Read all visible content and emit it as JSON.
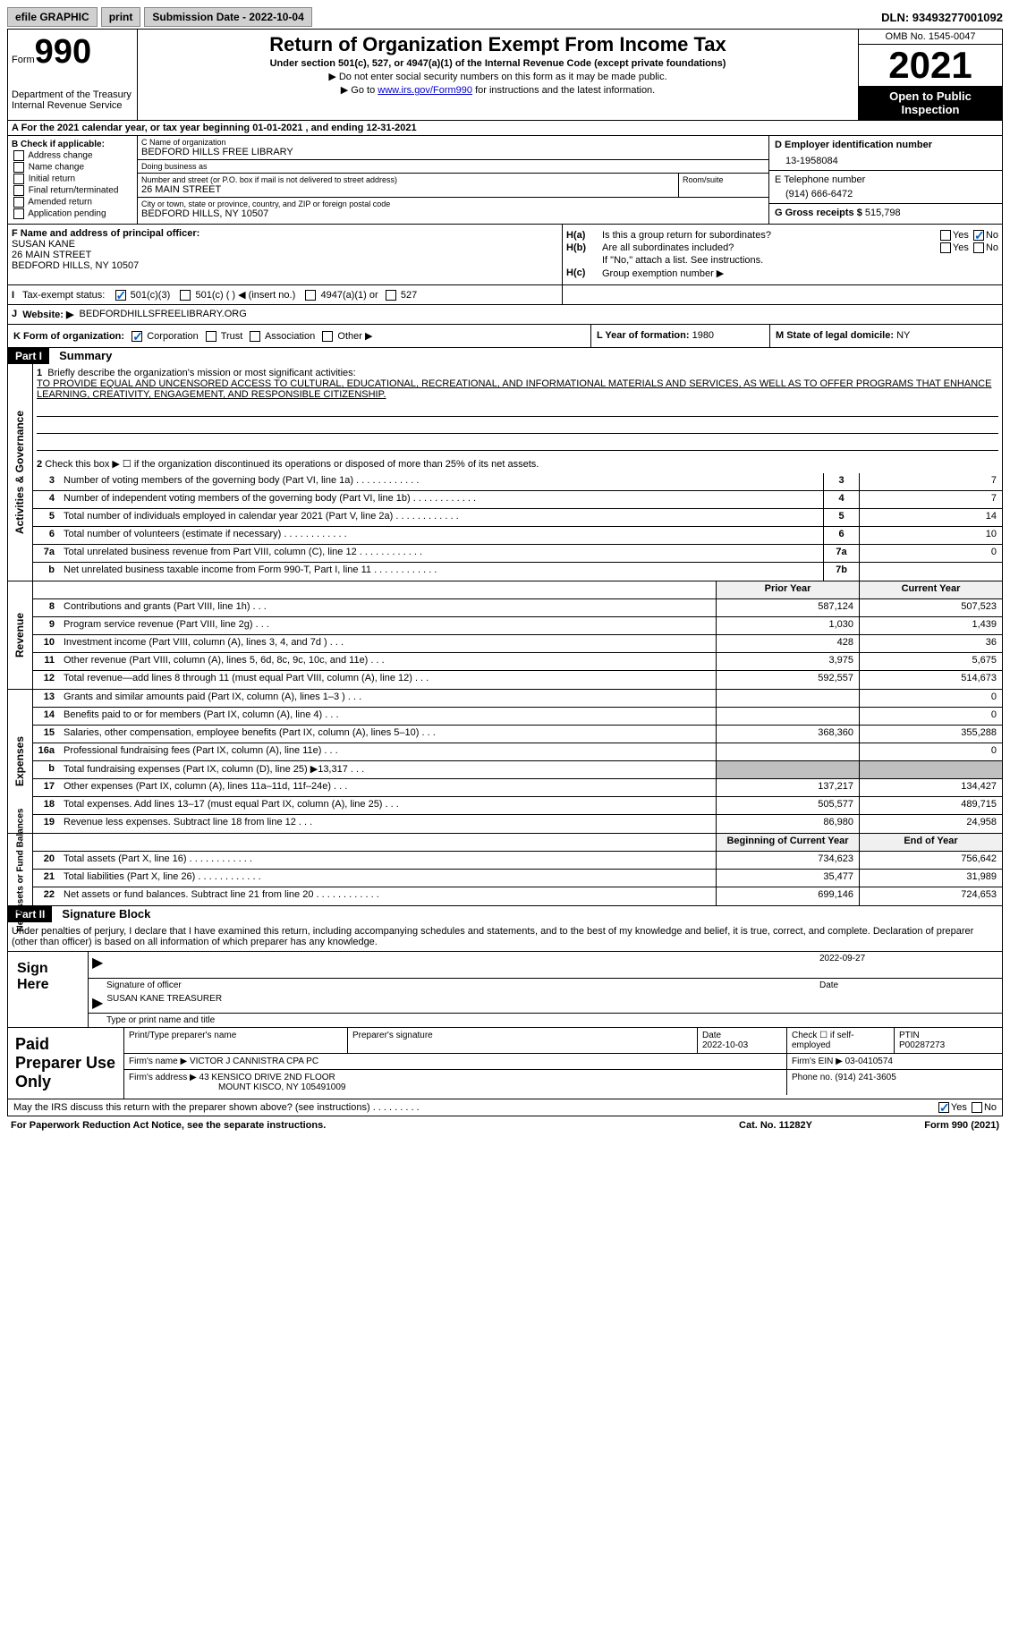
{
  "topbar": {
    "efile": "efile GRAPHIC",
    "print": "print",
    "submission": "Submission Date - 2022-10-04",
    "dln": "DLN: 93493277001092"
  },
  "header": {
    "form_prefix": "Form",
    "form_number": "990",
    "dept": "Department of the Treasury",
    "irs": "Internal Revenue Service",
    "title": "Return of Organization Exempt From Income Tax",
    "subtitle": "Under section 501(c), 527, or 4947(a)(1) of the Internal Revenue Code (except private foundations)",
    "note1": "▶ Do not enter social security numbers on this form as it may be made public.",
    "note2_pre": "▶ Go to ",
    "note2_link": "www.irs.gov/Form990",
    "note2_post": " for instructions and the latest information.",
    "omb": "OMB No. 1545-0047",
    "year": "2021",
    "inspect": "Open to Public Inspection"
  },
  "row_a": "A For the 2021 calendar year, or tax year beginning 01-01-2021    , and ending 12-31-2021",
  "section_b": {
    "label": "B Check if applicable:",
    "opts": [
      "Address change",
      "Name change",
      "Initial return",
      "Final return/terminated",
      "Amended return",
      "Application pending"
    ]
  },
  "section_c": {
    "name_label": "C Name of organization",
    "name": "BEDFORD HILLS FREE LIBRARY",
    "dba_label": "Doing business as",
    "dba": "",
    "street_label": "Number and street (or P.O. box if mail is not delivered to street address)",
    "street": "26 MAIN STREET",
    "room_label": "Room/suite",
    "room": "",
    "city_label": "City or town, state or province, country, and ZIP or foreign postal code",
    "city": "BEDFORD HILLS, NY  10507"
  },
  "section_d": {
    "ein_label": "D Employer identification number",
    "ein": "13-1958084",
    "phone_label": "E Telephone number",
    "phone": "(914) 666-6472",
    "gross_label": "G Gross receipts $",
    "gross": "515,798"
  },
  "section_f": {
    "label": "F Name and address of principal officer:",
    "name": "SUSAN KANE",
    "street": "26 MAIN STREET",
    "city": "BEDFORD HILLS, NY  10507"
  },
  "section_h": {
    "ha_label": "H(a)",
    "ha_text": "Is this a group return for subordinates?",
    "hb_label": "H(b)",
    "hb_text": "Are all subordinates included?",
    "hb_note": "If \"No,\" attach a list. See instructions.",
    "hc_label": "H(c)",
    "hc_text": "Group exemption number ▶"
  },
  "row_i": {
    "label": "I",
    "text": "Tax-exempt status:",
    "opt1": "501(c)(3)",
    "opt2": "501(c) (  ) ◀ (insert no.)",
    "opt3": "4947(a)(1) or",
    "opt4": "527"
  },
  "row_j": {
    "label": "J",
    "text": "Website: ▶",
    "val": "BEDFORDHILLSFREELIBRARY.ORG"
  },
  "row_k": {
    "label": "K Form of organization:",
    "opt1": "Corporation",
    "opt2": "Trust",
    "opt3": "Association",
    "opt4": "Other ▶",
    "l_label": "L Year of formation:",
    "l_val": "1980",
    "m_label": "M State of legal domicile:",
    "m_val": "NY"
  },
  "part1": {
    "hdr": "Part I",
    "title": "Summary",
    "line1_label": "1",
    "line1_text": "Briefly describe the organization's mission or most significant activities:",
    "line1_val": "TO PROVIDE EQUAL AND UNCENSORED ACCESS TO CULTURAL, EDUCATIONAL, RECREATIONAL, AND INFORMATIONAL MATERIALS AND SERVICES, AS WELL AS TO OFFER PROGRAMS THAT ENHANCE LEARNING, CREATIVITY, ENGAGEMENT, AND RESPONSIBLE CITIZENSHIP.",
    "line2_text": "Check this box ▶ ☐ if the organization discontinued its operations or disposed of more than 25% of its net assets."
  },
  "governance": {
    "vtab": "Activities & Governance",
    "rows": [
      {
        "n": "3",
        "t": "Number of voting members of the governing body (Part VI, line 1a)",
        "box": "3",
        "v": "7"
      },
      {
        "n": "4",
        "t": "Number of independent voting members of the governing body (Part VI, line 1b)",
        "box": "4",
        "v": "7"
      },
      {
        "n": "5",
        "t": "Total number of individuals employed in calendar year 2021 (Part V, line 2a)",
        "box": "5",
        "v": "14"
      },
      {
        "n": "6",
        "t": "Total number of volunteers (estimate if necessary)",
        "box": "6",
        "v": "10"
      },
      {
        "n": "7a",
        "t": "Total unrelated business revenue from Part VIII, column (C), line 12",
        "box": "7a",
        "v": "0"
      },
      {
        "n": "b",
        "t": "Net unrelated business taxable income from Form 990-T, Part I, line 11",
        "box": "7b",
        "v": ""
      }
    ]
  },
  "revenue": {
    "vtab": "Revenue",
    "hdr_prior": "Prior Year",
    "hdr_current": "Current Year",
    "rows": [
      {
        "n": "8",
        "t": "Contributions and grants (Part VIII, line 1h)",
        "p": "587,124",
        "c": "507,523"
      },
      {
        "n": "9",
        "t": "Program service revenue (Part VIII, line 2g)",
        "p": "1,030",
        "c": "1,439"
      },
      {
        "n": "10",
        "t": "Investment income (Part VIII, column (A), lines 3, 4, and 7d )",
        "p": "428",
        "c": "36"
      },
      {
        "n": "11",
        "t": "Other revenue (Part VIII, column (A), lines 5, 6d, 8c, 9c, 10c, and 11e)",
        "p": "3,975",
        "c": "5,675"
      },
      {
        "n": "12",
        "t": "Total revenue—add lines 8 through 11 (must equal Part VIII, column (A), line 12)",
        "p": "592,557",
        "c": "514,673"
      }
    ]
  },
  "expenses": {
    "vtab": "Expenses",
    "rows": [
      {
        "n": "13",
        "t": "Grants and similar amounts paid (Part IX, column (A), lines 1–3 )",
        "p": "",
        "c": "0"
      },
      {
        "n": "14",
        "t": "Benefits paid to or for members (Part IX, column (A), line 4)",
        "p": "",
        "c": "0"
      },
      {
        "n": "15",
        "t": "Salaries, other compensation, employee benefits (Part IX, column (A), lines 5–10)",
        "p": "368,360",
        "c": "355,288"
      },
      {
        "n": "16a",
        "t": "Professional fundraising fees (Part IX, column (A), line 11e)",
        "p": "",
        "c": "0"
      },
      {
        "n": "b",
        "t": "Total fundraising expenses (Part IX, column (D), line 25) ▶13,317",
        "p": "gray",
        "c": "gray"
      },
      {
        "n": "17",
        "t": "Other expenses (Part IX, column (A), lines 11a–11d, 11f–24e)",
        "p": "137,217",
        "c": "134,427"
      },
      {
        "n": "18",
        "t": "Total expenses. Add lines 13–17 (must equal Part IX, column (A), line 25)",
        "p": "505,577",
        "c": "489,715"
      },
      {
        "n": "19",
        "t": "Revenue less expenses. Subtract line 18 from line 12",
        "p": "86,980",
        "c": "24,958"
      }
    ]
  },
  "netassets": {
    "vtab": "Net Assets or Fund Balances",
    "hdr_begin": "Beginning of Current Year",
    "hdr_end": "End of Year",
    "rows": [
      {
        "n": "20",
        "t": "Total assets (Part X, line 16)",
        "p": "734,623",
        "c": "756,642"
      },
      {
        "n": "21",
        "t": "Total liabilities (Part X, line 26)",
        "p": "35,477",
        "c": "31,989"
      },
      {
        "n": "22",
        "t": "Net assets or fund balances. Subtract line 21 from line 20",
        "p": "699,146",
        "c": "724,653"
      }
    ]
  },
  "part2": {
    "hdr": "Part II",
    "title": "Signature Block",
    "declare": "Under penalties of perjury, I declare that I have examined this return, including accompanying schedules and statements, and to the best of my knowledge and belief, it is true, correct, and complete. Declaration of preparer (other than officer) is based on all information of which preparer has any knowledge."
  },
  "sign": {
    "label": "Sign Here",
    "sig_label": "Signature of officer",
    "date": "2022-09-27",
    "date_label": "Date",
    "name": "SUSAN KANE  TREASURER",
    "name_label": "Type or print name and title"
  },
  "preparer": {
    "label": "Paid Preparer Use Only",
    "name_label": "Print/Type preparer's name",
    "sig_label": "Preparer's signature",
    "date_label": "Date",
    "date": "2022-10-03",
    "check_label": "Check ☐ if self-employed",
    "ptin_label": "PTIN",
    "ptin": "P00287273",
    "firm_label": "Firm's name    ▶",
    "firm": "VICTOR J CANNISTRA CPA PC",
    "ein_label": "Firm's EIN ▶",
    "ein": "03-0410574",
    "addr_label": "Firm's address ▶",
    "addr1": "43 KENSICO DRIVE 2ND FLOOR",
    "addr2": "MOUNT KISCO, NY  105491009",
    "phone_label": "Phone no.",
    "phone": "(914) 241-3605"
  },
  "footer": {
    "discuss": "May the IRS discuss this return with the preparer shown above? (see instructions)",
    "notice": "For Paperwork Reduction Act Notice, see the separate instructions.",
    "cat": "Cat. No. 11282Y",
    "form": "Form 990 (2021)"
  }
}
